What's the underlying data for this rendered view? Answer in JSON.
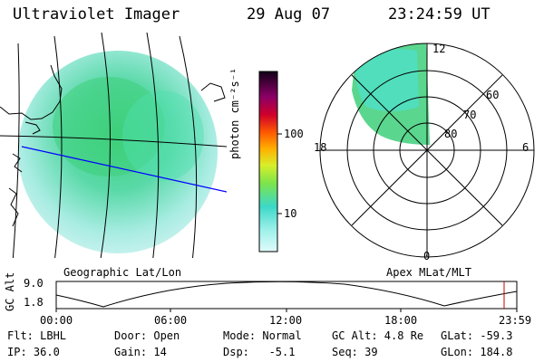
{
  "header": {
    "instrument": "Ultraviolet Imager",
    "date": "29 Aug 07",
    "time": "23:24:59 UT"
  },
  "colorbar": {
    "unit_label": "photon cm⁻²s⁻¹",
    "ticks": [
      "100",
      "10"
    ]
  },
  "polar_plot": {
    "mlt_labels": [
      "12",
      "18",
      "6",
      "0"
    ],
    "mlat_labels": [
      "60",
      "70",
      "80"
    ]
  },
  "captions": {
    "left": "Geographic Lat/Lon",
    "right": "Apex MLat/MLT"
  },
  "altitude_plot": {
    "axis_label": "GC Alt",
    "y_ticks": [
      "9.0",
      "1.8"
    ],
    "x_ticks": [
      "00:00",
      "06:00",
      "12:00",
      "18:00",
      "23:59"
    ]
  },
  "info": {
    "filter": "Flt: LBHL",
    "door": "Door: Open",
    "mode": "Mode: Normal",
    "gc_alt": "GC Alt: 4.8 Re",
    "glat": "GLat: -59.3",
    "ip": "IP: 36.0",
    "gain": "Gain: 14",
    "dsp": "Dsp:   -5.1",
    "seq": "Seq: 39",
    "glon": "GLon: 184.8"
  },
  "colors": {
    "aurora_green": "#3ecf7a",
    "aurora_cyan": "#4fe0c8",
    "background_glow": "#c4f0ea",
    "track_blue": "#0000ff",
    "current_marker": "#cc0000"
  }
}
